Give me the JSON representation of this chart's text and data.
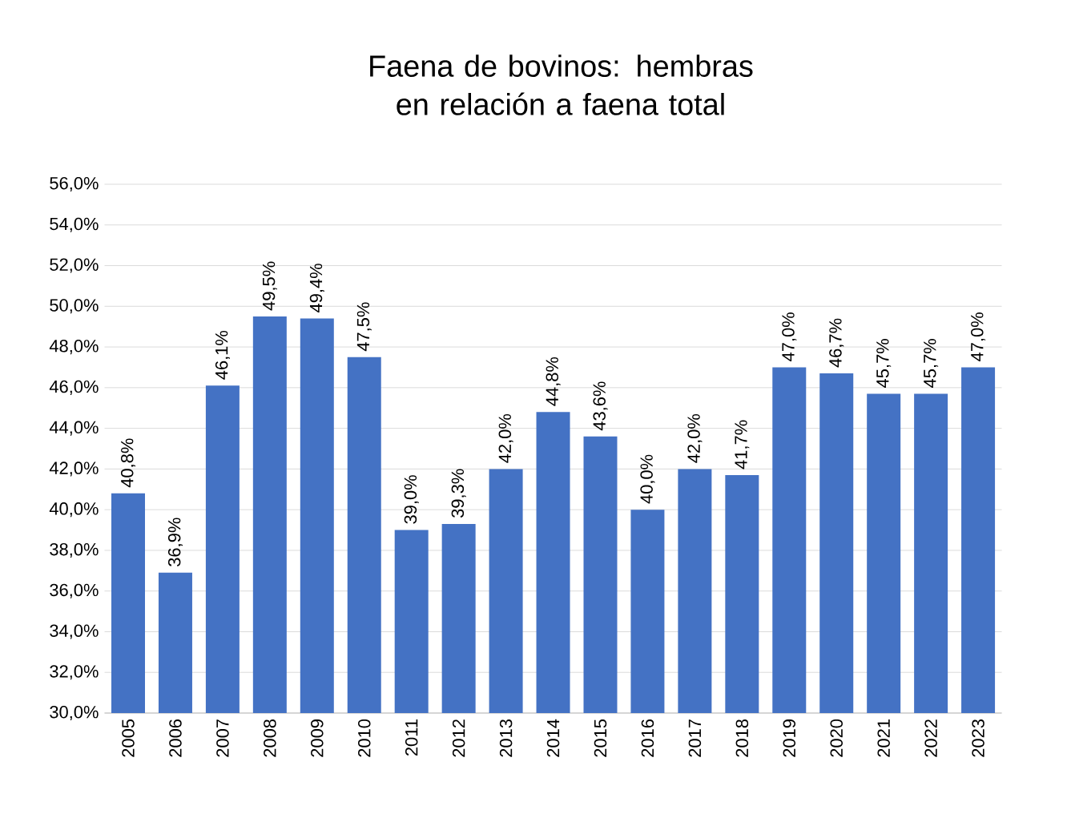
{
  "chart_data": {
    "type": "bar",
    "title": "Faena de bovinos: hembras en relación a faena total",
    "categories": [
      "2005",
      "2006",
      "2007",
      "2008",
      "2009",
      "2010",
      "2011",
      "2012",
      "2013",
      "2014",
      "2015",
      "2016",
      "2017",
      "2018",
      "2019",
      "2020",
      "2021",
      "2022",
      "2023"
    ],
    "values": [
      40.8,
      36.9,
      46.1,
      49.5,
      49.4,
      47.5,
      39.0,
      39.3,
      42.0,
      44.8,
      43.6,
      40.0,
      42.0,
      41.7,
      47.0,
      46.7,
      45.7,
      45.7,
      47.0
    ],
    "value_labels": [
      "40,8%",
      "36,9%",
      "46,1%",
      "49,5%",
      "49,4%",
      "47,5%",
      "39,0%",
      "39,3%",
      "42,0%",
      "44,8%",
      "43,6%",
      "40,0%",
      "42,0%",
      "41,7%",
      "47,0%",
      "46,7%",
      "45,7%",
      "45,7%",
      "47,0%"
    ],
    "color": "#4472c4",
    "ylim": [
      30,
      56
    ],
    "yticks": [
      {
        "value": 30,
        "label": "30,0%"
      },
      {
        "value": 32,
        "label": "32,0%"
      },
      {
        "value": 34,
        "label": "34,0%"
      },
      {
        "value": 36,
        "label": "36,0%"
      },
      {
        "value": 38,
        "label": "38,0%"
      },
      {
        "value": 40,
        "label": "40,0%"
      },
      {
        "value": 42,
        "label": "42,0%"
      },
      {
        "value": 44,
        "label": "44,0%"
      },
      {
        "value": 46,
        "label": "46,0%"
      },
      {
        "value": 48,
        "label": "48,0%"
      },
      {
        "value": 50,
        "label": "50,0%"
      },
      {
        "value": 52,
        "label": "52,0%"
      },
      {
        "value": 54,
        "label": "54,0%"
      },
      {
        "value": 56,
        "label": "56,0%"
      }
    ],
    "grid": "y"
  }
}
